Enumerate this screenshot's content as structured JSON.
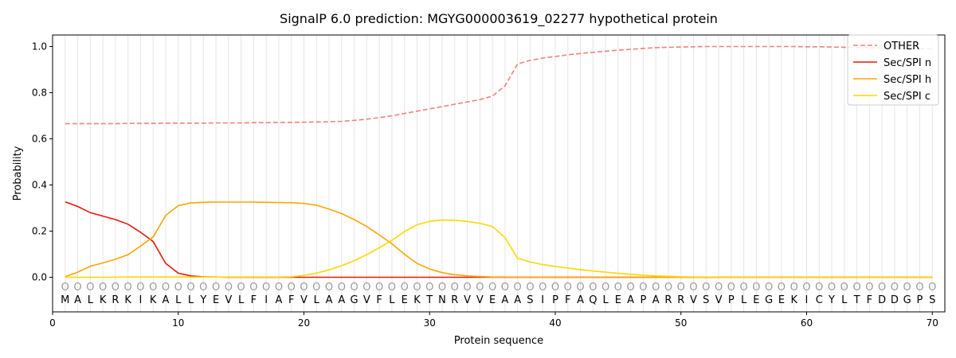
{
  "chart_data": {
    "type": "line",
    "title": "SignalP 6.0 prediction: MGYG000003619_02277 hypothetical protein",
    "xlabel": "Protein sequence",
    "ylabel": "Probability",
    "xlim": [
      0,
      71
    ],
    "ylim": [
      -0.15,
      1.05
    ],
    "x_ticks": [
      0,
      10,
      20,
      30,
      40,
      50,
      60,
      70
    ],
    "y_ticks": [
      0.0,
      0.2,
      0.4,
      0.6,
      0.8,
      1.0
    ],
    "y_tick_labels": [
      "0.0",
      "0.2",
      "0.4",
      "0.6",
      "0.8",
      "1.0"
    ],
    "grid": "vertical lines at each residue",
    "legend_position": "top-right",
    "sequence": [
      "M",
      "A",
      "L",
      "K",
      "R",
      "K",
      "I",
      "K",
      "A",
      "L",
      "L",
      "Y",
      "E",
      "V",
      "L",
      "F",
      "I",
      "A",
      "F",
      "V",
      "L",
      "A",
      "A",
      "G",
      "V",
      "F",
      "L",
      "E",
      "K",
      "T",
      "N",
      "R",
      "V",
      "V",
      "E",
      "A",
      "A",
      "S",
      "I",
      "P",
      "F",
      "A",
      "Q",
      "L",
      "E",
      "A",
      "P",
      "A",
      "R",
      "R",
      "V",
      "S",
      "V",
      "P",
      "L",
      "E",
      "G",
      "E",
      "K",
      "I",
      "C",
      "Y",
      "L",
      "T",
      "F",
      "D",
      "D",
      "G",
      "P",
      "S"
    ],
    "region_labels": [
      "O",
      "O",
      "O",
      "O",
      "O",
      "O",
      "O",
      "O",
      "O",
      "O",
      "O",
      "O",
      "O",
      "O",
      "O",
      "O",
      "O",
      "O",
      "O",
      "O",
      "O",
      "O",
      "O",
      "O",
      "O",
      "O",
      "O",
      "O",
      "O",
      "O",
      "O",
      "O",
      "O",
      "O",
      "O",
      "O",
      "O",
      "O",
      "O",
      "O",
      "O",
      "O",
      "O",
      "O",
      "O",
      "O",
      "O",
      "O",
      "O",
      "O",
      "O",
      "O",
      "O",
      "O",
      "O",
      "O",
      "O",
      "O",
      "O",
      "O",
      "O",
      "O",
      "O",
      "O",
      "O",
      "O",
      "O",
      "O",
      "O",
      "O"
    ],
    "series": [
      {
        "name": "OTHER",
        "color": "#f08080",
        "dashed": true,
        "values": [
          0.666,
          0.666,
          0.666,
          0.666,
          0.666,
          0.667,
          0.667,
          0.667,
          0.668,
          0.668,
          0.668,
          0.668,
          0.669,
          0.669,
          0.669,
          0.67,
          0.67,
          0.671,
          0.671,
          0.672,
          0.673,
          0.674,
          0.676,
          0.68,
          0.685,
          0.692,
          0.7,
          0.71,
          0.72,
          0.73,
          0.74,
          0.75,
          0.76,
          0.77,
          0.785,
          0.83,
          0.925,
          0.94,
          0.95,
          0.957,
          0.964,
          0.97,
          0.975,
          0.98,
          0.984,
          0.988,
          0.992,
          0.995,
          0.997,
          0.998,
          0.999,
          1.0,
          1.0,
          1.0,
          1.0,
          1.0,
          1.0,
          1.0,
          1.0,
          0.999,
          0.999,
          0.998,
          0.997,
          0.996,
          0.995,
          0.994,
          0.993,
          0.992,
          0.991,
          0.99
        ]
      },
      {
        "name": "Sec/SPI n",
        "color": "#e8170b",
        "dashed": false,
        "values": [
          0.327,
          0.307,
          0.28,
          0.265,
          0.25,
          0.23,
          0.195,
          0.155,
          0.06,
          0.018,
          0.006,
          0.002,
          0.001,
          0,
          0,
          0,
          0,
          0,
          0,
          0,
          0,
          0,
          0,
          0,
          0,
          0,
          0,
          0,
          0,
          0,
          0,
          0,
          0,
          0,
          0,
          0,
          0,
          0,
          0,
          0,
          0,
          0,
          0,
          0,
          0,
          0,
          0,
          0,
          0,
          0,
          0,
          0,
          0,
          0,
          0,
          0,
          0,
          0,
          0,
          0,
          0,
          0,
          0,
          0,
          0,
          0,
          0,
          0,
          0,
          0
        ]
      },
      {
        "name": "Sec/SPI h",
        "color": "#ffa500",
        "dashed": false,
        "values": [
          0.002,
          0.022,
          0.048,
          0.062,
          0.078,
          0.098,
          0.135,
          0.175,
          0.268,
          0.31,
          0.322,
          0.325,
          0.326,
          0.326,
          0.326,
          0.326,
          0.325,
          0.324,
          0.323,
          0.32,
          0.312,
          0.296,
          0.276,
          0.25,
          0.22,
          0.183,
          0.145,
          0.1,
          0.06,
          0.036,
          0.02,
          0.011,
          0.006,
          0.003,
          0.001,
          0.001,
          0,
          0,
          0,
          0,
          0,
          0,
          0,
          0,
          0,
          0,
          0,
          0,
          0,
          0,
          0,
          0,
          0,
          0,
          0,
          0,
          0,
          0,
          0,
          0,
          0,
          0,
          0,
          0,
          0,
          0,
          0,
          0,
          0,
          0
        ]
      },
      {
        "name": "Sec/SPI c",
        "color": "#ffd700",
        "dashed": false,
        "values": [
          0,
          0,
          0,
          0,
          0,
          0.001,
          0.001,
          0.001,
          0.001,
          0.001,
          0.001,
          0.001,
          0.001,
          0.001,
          0.001,
          0.001,
          0.001,
          0.001,
          0.002,
          0.008,
          0.018,
          0.032,
          0.05,
          0.072,
          0.098,
          0.128,
          0.16,
          0.198,
          0.228,
          0.242,
          0.248,
          0.247,
          0.242,
          0.234,
          0.22,
          0.172,
          0.082,
          0.066,
          0.055,
          0.047,
          0.04,
          0.033,
          0.027,
          0.022,
          0.017,
          0.013,
          0.009,
          0.006,
          0.004,
          0.002,
          0.001,
          0.001,
          0,
          0,
          0,
          0,
          0,
          0,
          0,
          0,
          0,
          0,
          0,
          0,
          0,
          0,
          0,
          0,
          0,
          0
        ]
      }
    ]
  }
}
